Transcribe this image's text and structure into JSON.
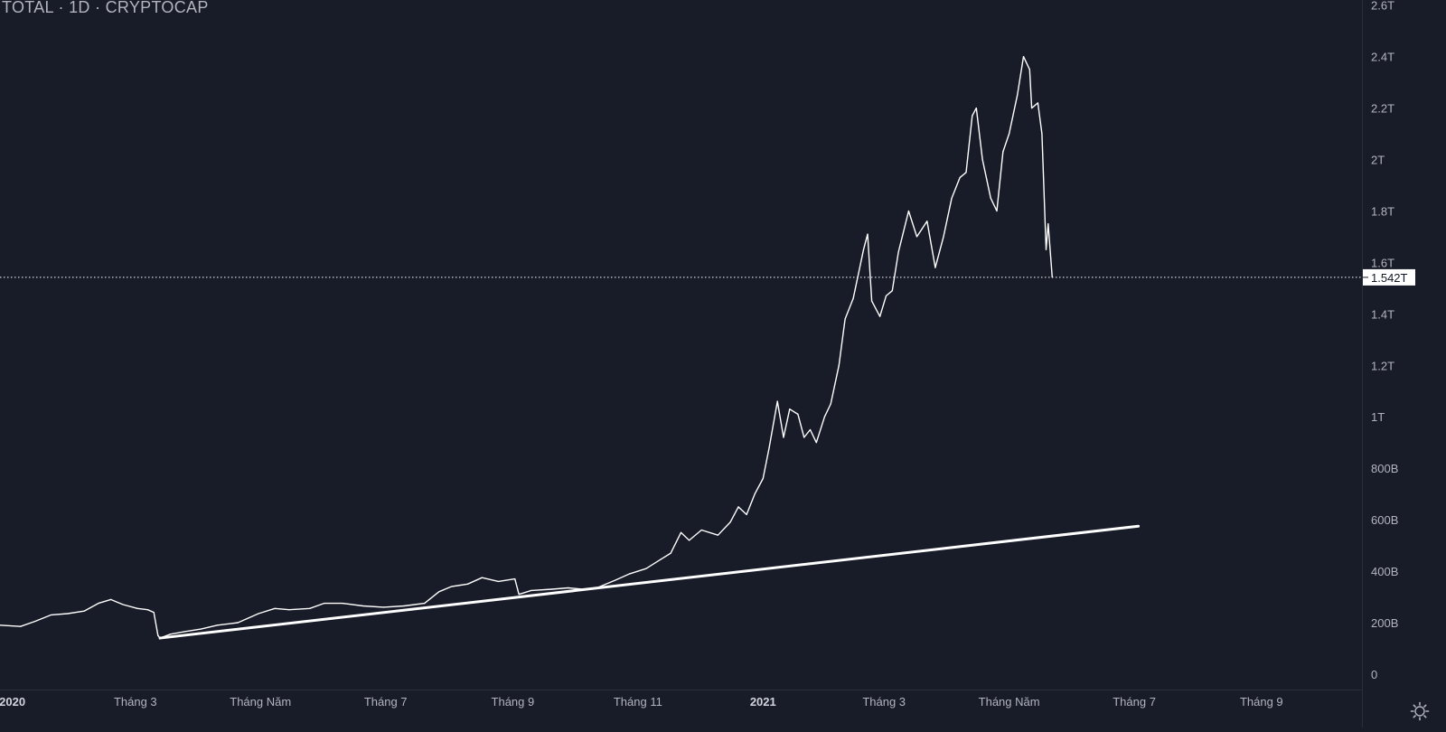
{
  "symbol": {
    "title": "TOTAL · 1D · CRYPTOCAP"
  },
  "colors": {
    "background": "#181b28",
    "line": "#ffffff",
    "axis_text": "#b2b5be",
    "crosshair": "#ffffff"
  },
  "settings": {
    "icon": "gear-icon"
  },
  "chart_data": {
    "type": "line",
    "title": "TOTAL · 1D · CRYPTOCAP",
    "price_label": "1.542T",
    "price_value": 1.542,
    "ylim": [
      -0.06,
      2.62
    ],
    "y_unit": "T",
    "y_ticks": [
      {
        "value": 0,
        "label": "0"
      },
      {
        "value": 0.2,
        "label": "200B"
      },
      {
        "value": 0.4,
        "label": "400B"
      },
      {
        "value": 0.6,
        "label": "600B"
      },
      {
        "value": 0.8,
        "label": "800B"
      },
      {
        "value": 1.0,
        "label": "1T"
      },
      {
        "value": 1.2,
        "label": "1.2T"
      },
      {
        "value": 1.4,
        "label": "1.4T"
      },
      {
        "value": 1.6,
        "label": "1.6T"
      },
      {
        "value": 1.8,
        "label": "1.8T"
      },
      {
        "value": 2.0,
        "label": "2T"
      },
      {
        "value": 2.2,
        "label": "2.2T"
      },
      {
        "value": 2.4,
        "label": "2.4T"
      },
      {
        "value": 2.6,
        "label": "2.6T"
      }
    ],
    "xlim": [
      "2019-12-26",
      "2021-10-20"
    ],
    "x_ticks": [
      {
        "date": "2020-01-01",
        "label": "2020",
        "bold": true
      },
      {
        "date": "2020-03-01",
        "label": "Tháng 3",
        "bold": false
      },
      {
        "date": "2020-05-01",
        "label": "Tháng Năm",
        "bold": false
      },
      {
        "date": "2020-07-01",
        "label": "Tháng 7",
        "bold": false
      },
      {
        "date": "2020-09-01",
        "label": "Tháng 9",
        "bold": false
      },
      {
        "date": "2020-11-01",
        "label": "Tháng 11",
        "bold": false
      },
      {
        "date": "2021-01-01",
        "label": "2021",
        "bold": true
      },
      {
        "date": "2021-03-01",
        "label": "Tháng 3",
        "bold": false
      },
      {
        "date": "2021-05-01",
        "label": "Tháng Năm",
        "bold": false
      },
      {
        "date": "2021-07-01",
        "label": "Tháng 7",
        "bold": false
      },
      {
        "date": "2021-09-01",
        "label": "Tháng 9",
        "bold": false
      }
    ],
    "series": [
      {
        "points": [
          [
            "2019-12-26",
            0.19
          ],
          [
            "2020-01-05",
            0.185
          ],
          [
            "2020-01-12",
            0.205
          ],
          [
            "2020-01-20",
            0.23
          ],
          [
            "2020-01-28",
            0.235
          ],
          [
            "2020-02-05",
            0.245
          ],
          [
            "2020-02-12",
            0.275
          ],
          [
            "2020-02-18",
            0.29
          ],
          [
            "2020-02-24",
            0.27
          ],
          [
            "2020-03-02",
            0.255
          ],
          [
            "2020-03-07",
            0.25
          ],
          [
            "2020-03-10",
            0.24
          ],
          [
            "2020-03-12",
            0.15
          ],
          [
            "2020-03-13",
            0.14
          ],
          [
            "2020-03-18",
            0.155
          ],
          [
            "2020-03-25",
            0.165
          ],
          [
            "2020-04-02",
            0.175
          ],
          [
            "2020-04-10",
            0.19
          ],
          [
            "2020-04-20",
            0.2
          ],
          [
            "2020-04-30",
            0.235
          ],
          [
            "2020-05-08",
            0.255
          ],
          [
            "2020-05-15",
            0.25
          ],
          [
            "2020-05-25",
            0.255
          ],
          [
            "2020-06-01",
            0.275
          ],
          [
            "2020-06-10",
            0.275
          ],
          [
            "2020-06-20",
            0.265
          ],
          [
            "2020-06-30",
            0.26
          ],
          [
            "2020-07-10",
            0.265
          ],
          [
            "2020-07-20",
            0.275
          ],
          [
            "2020-07-27",
            0.32
          ],
          [
            "2020-08-02",
            0.34
          ],
          [
            "2020-08-10",
            0.35
          ],
          [
            "2020-08-17",
            0.375
          ],
          [
            "2020-08-25",
            0.36
          ],
          [
            "2020-09-02",
            0.37
          ],
          [
            "2020-09-04",
            0.31
          ],
          [
            "2020-09-10",
            0.325
          ],
          [
            "2020-09-20",
            0.33
          ],
          [
            "2020-09-28",
            0.335
          ],
          [
            "2020-10-05",
            0.33
          ],
          [
            "2020-10-12",
            0.335
          ],
          [
            "2020-10-21",
            0.365
          ],
          [
            "2020-10-28",
            0.39
          ],
          [
            "2020-11-05",
            0.41
          ],
          [
            "2020-11-12",
            0.445
          ],
          [
            "2020-11-17",
            0.47
          ],
          [
            "2020-11-22",
            0.55
          ],
          [
            "2020-11-26",
            0.52
          ],
          [
            "2020-12-02",
            0.56
          ],
          [
            "2020-12-10",
            0.54
          ],
          [
            "2020-12-16",
            0.59
          ],
          [
            "2020-12-20",
            0.65
          ],
          [
            "2020-12-24",
            0.62
          ],
          [
            "2020-12-28",
            0.7
          ],
          [
            "2021-01-01",
            0.76
          ],
          [
            "2021-01-04",
            0.88
          ],
          [
            "2021-01-08",
            1.06
          ],
          [
            "2021-01-11",
            0.92
          ],
          [
            "2021-01-14",
            1.03
          ],
          [
            "2021-01-18",
            1.01
          ],
          [
            "2021-01-21",
            0.92
          ],
          [
            "2021-01-24",
            0.95
          ],
          [
            "2021-01-27",
            0.9
          ],
          [
            "2021-01-31",
            1.0
          ],
          [
            "2021-02-03",
            1.05
          ],
          [
            "2021-02-07",
            1.2
          ],
          [
            "2021-02-10",
            1.38
          ],
          [
            "2021-02-14",
            1.46
          ],
          [
            "2021-02-19",
            1.65
          ],
          [
            "2021-02-21",
            1.71
          ],
          [
            "2021-02-23",
            1.45
          ],
          [
            "2021-02-27",
            1.39
          ],
          [
            "2021-03-02",
            1.47
          ],
          [
            "2021-03-05",
            1.49
          ],
          [
            "2021-03-08",
            1.64
          ],
          [
            "2021-03-13",
            1.8
          ],
          [
            "2021-03-17",
            1.7
          ],
          [
            "2021-03-22",
            1.76
          ],
          [
            "2021-03-26",
            1.58
          ],
          [
            "2021-03-30",
            1.7
          ],
          [
            "2021-04-03",
            1.85
          ],
          [
            "2021-04-07",
            1.93
          ],
          [
            "2021-04-10",
            1.95
          ],
          [
            "2021-04-13",
            2.17
          ],
          [
            "2021-04-15",
            2.2
          ],
          [
            "2021-04-18",
            2.0
          ],
          [
            "2021-04-22",
            1.85
          ],
          [
            "2021-04-25",
            1.8
          ],
          [
            "2021-04-28",
            2.03
          ],
          [
            "2021-05-01",
            2.1
          ],
          [
            "2021-05-05",
            2.25
          ],
          [
            "2021-05-08",
            2.4
          ],
          [
            "2021-05-11",
            2.35
          ],
          [
            "2021-05-12",
            2.2
          ],
          [
            "2021-05-15",
            2.22
          ],
          [
            "2021-05-17",
            2.1
          ],
          [
            "2021-05-19",
            1.65
          ],
          [
            "2021-05-20",
            1.75
          ],
          [
            "2021-05-22",
            1.542
          ]
        ]
      }
    ],
    "trendline": {
      "from": [
        "2020-03-13",
        0.14
      ],
      "to": [
        "2021-07-03",
        0.575
      ]
    }
  }
}
